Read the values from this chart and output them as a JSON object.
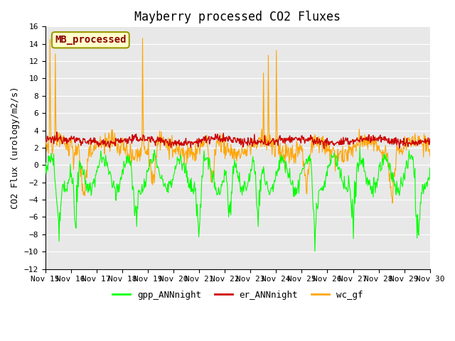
{
  "title": "Mayberry processed CO2 Fluxes",
  "ylabel": "CO2 Flux (urology/m2/s)",
  "ylim": [
    -12,
    16
  ],
  "yticks": [
    -12,
    -10,
    -8,
    -6,
    -4,
    -2,
    0,
    2,
    4,
    6,
    8,
    10,
    12,
    14,
    16
  ],
  "x_start_day": 15,
  "x_end_day": 30,
  "x_tick_days": [
    15,
    16,
    17,
    18,
    19,
    20,
    21,
    22,
    23,
    24,
    25,
    26,
    27,
    28,
    29,
    30
  ],
  "x_tick_labels": [
    "Nov 15",
    "Nov 16",
    "Nov 17",
    "Nov 18",
    "Nov 19",
    "Nov 20",
    "Nov 21",
    "Nov 22",
    "Nov 23",
    "Nov 24",
    "Nov 25",
    "Nov 26",
    "Nov 27",
    "Nov 28",
    "Nov 29",
    "Nov 30"
  ],
  "line_colors": {
    "gpp_ANNnight": "#00ff00",
    "er_ANNnight": "#cc0000",
    "wc_gf": "#ffa500"
  },
  "line_widths": {
    "gpp_ANNnight": 0.8,
    "er_ANNnight": 1.0,
    "wc_gf": 0.8
  },
  "legend_entries": [
    "gpp_ANNnight",
    "er_ANNnight",
    "wc_gf"
  ],
  "inset_label": "MB_processed",
  "inset_label_color": "#8B0000",
  "inset_bg_color": "#ffffcc",
  "inset_border_color": "#999900",
  "fig_bg_color": "#ffffff",
  "plot_bg_color": "#e8e8e8",
  "title_fontsize": 12,
  "axis_fontsize": 9,
  "tick_fontsize": 8,
  "legend_fontsize": 9,
  "n_points_per_day": 48
}
